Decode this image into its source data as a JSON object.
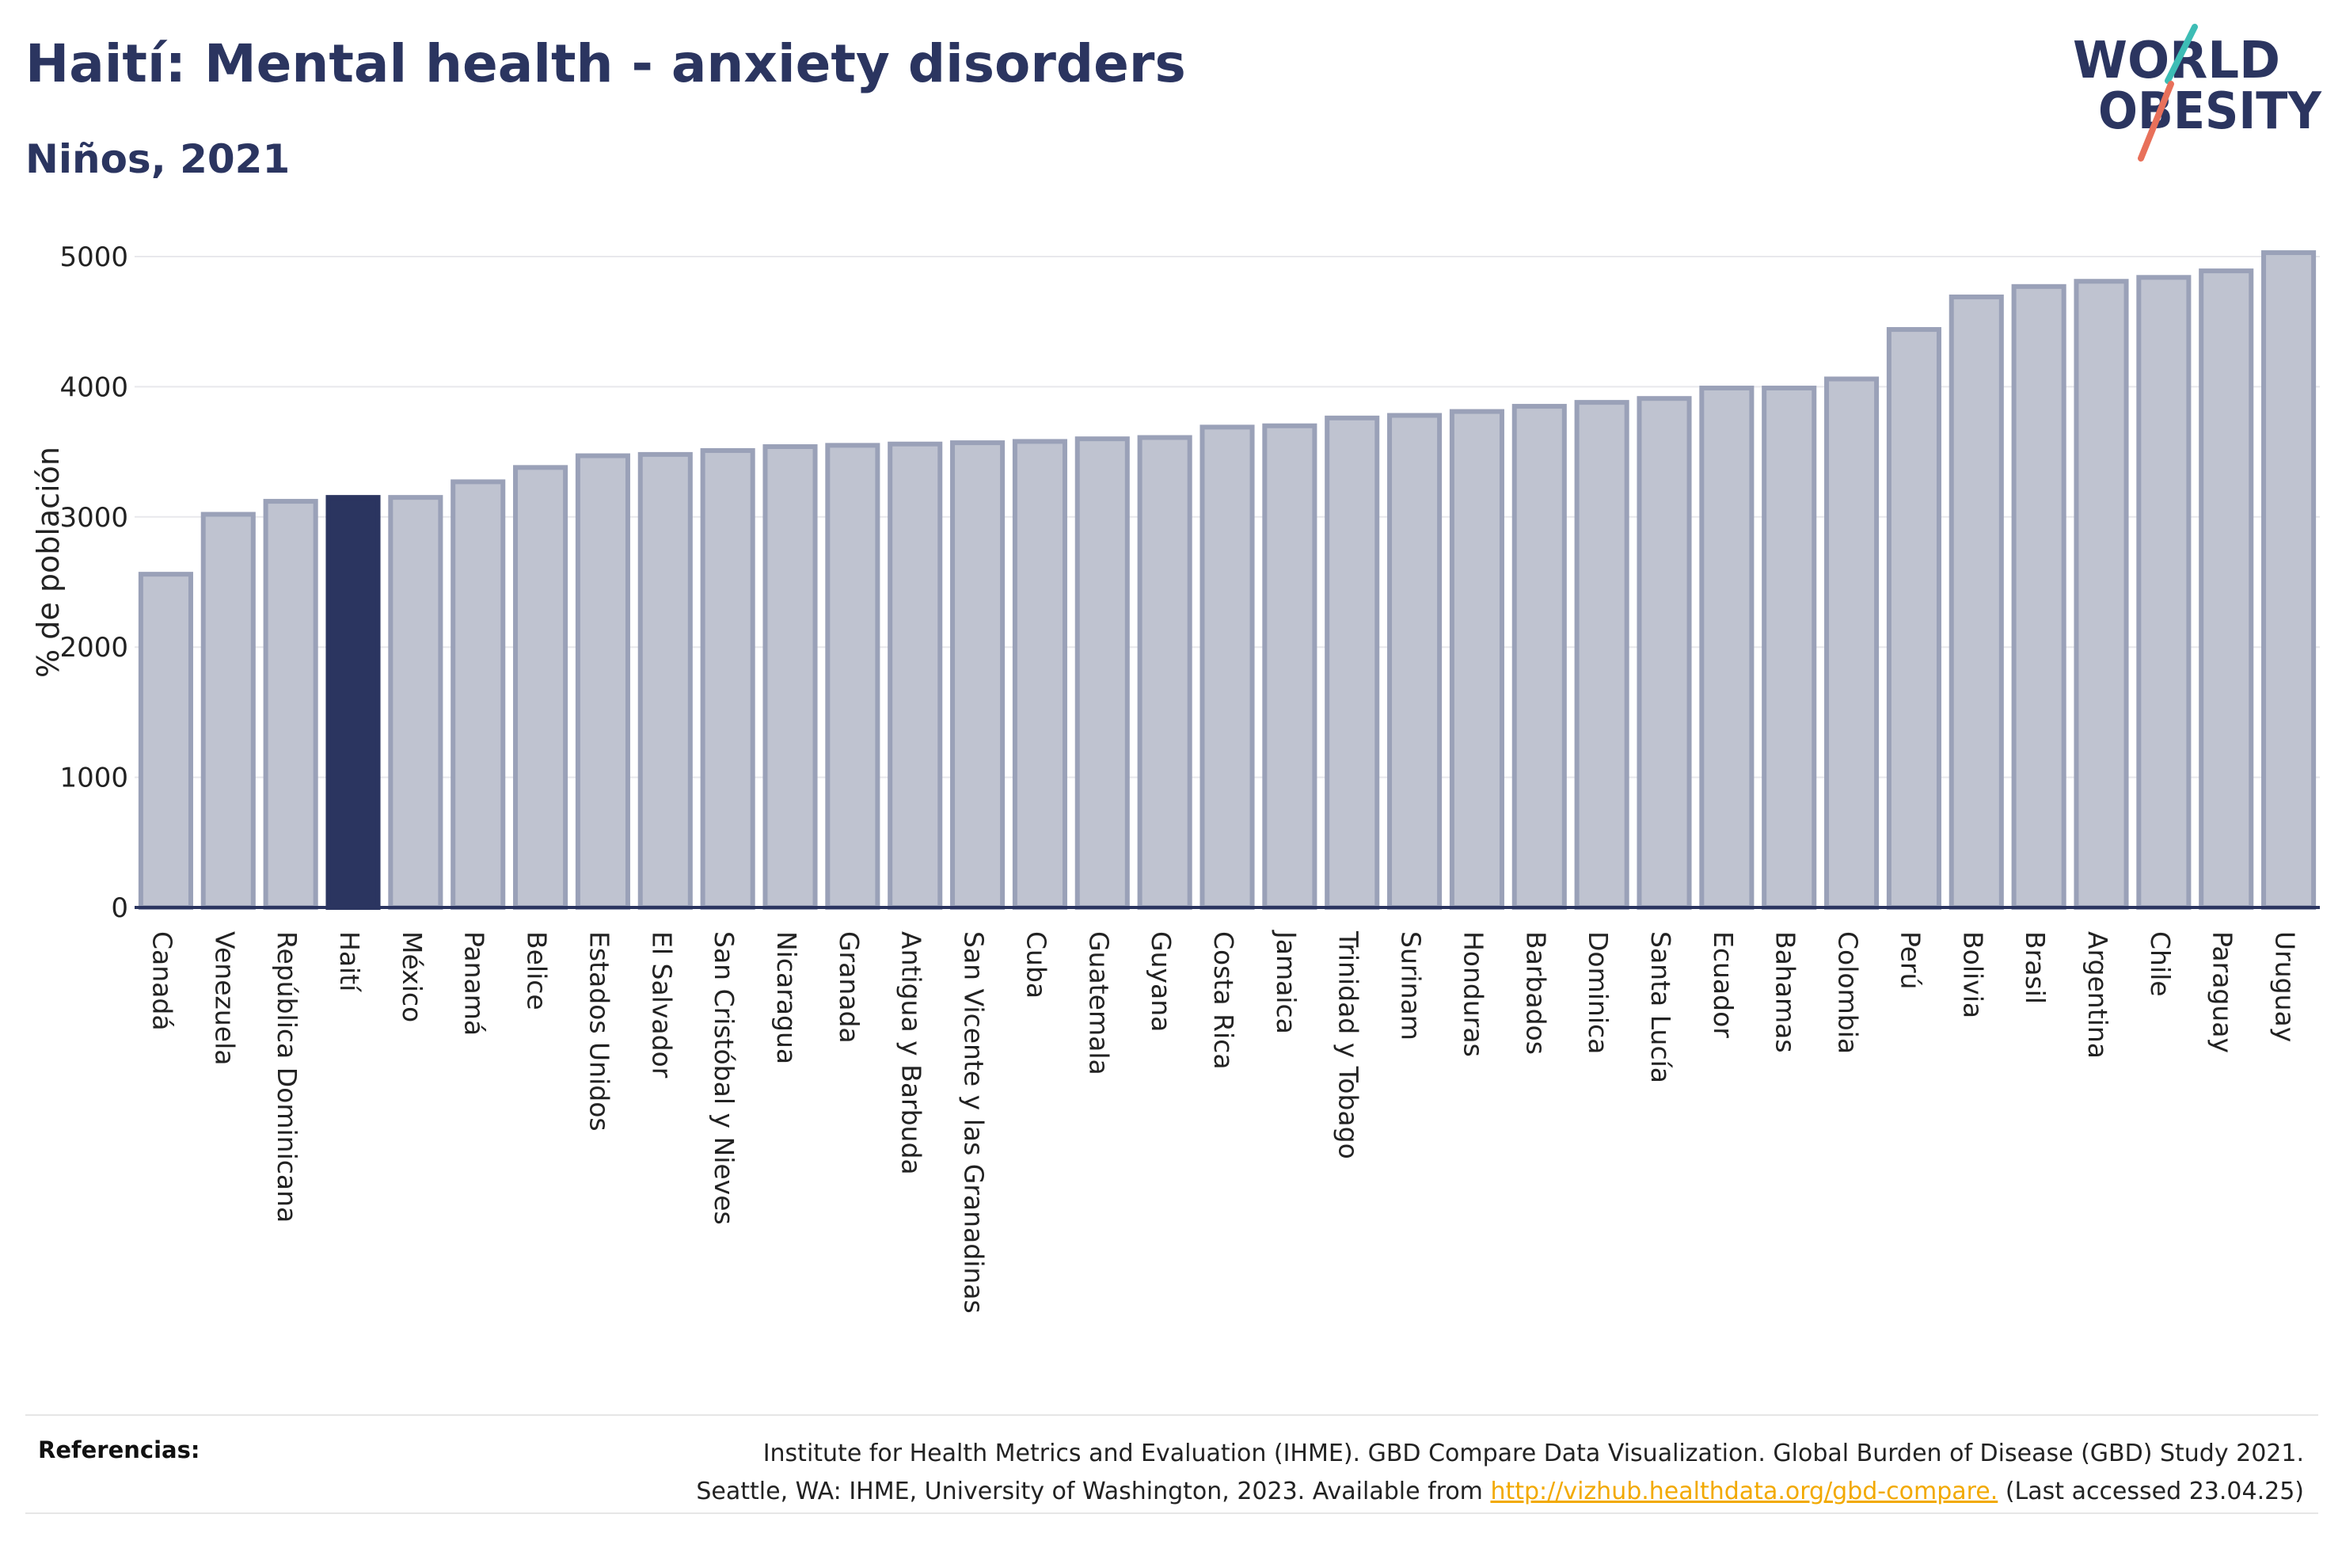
{
  "header": {
    "title": "Haití: Mental health - anxiety disorders",
    "subtitle": "Niños, 2021"
  },
  "logo": {
    "line1": "WORLD",
    "line2": "OBESITY",
    "slash_colors": [
      "#e8705a",
      "#3dbdb5"
    ]
  },
  "chart_data": {
    "type": "bar",
    "title": "",
    "xlabel": "",
    "ylabel": "% de población",
    "ylim": [
      0,
      5000
    ],
    "yticks": [
      0,
      1000,
      2000,
      3000,
      4000,
      5000
    ],
    "grid": true,
    "highlight": "Haití",
    "colors": {
      "bar": "#bfc3d0",
      "bar_edge": "#9aa1b8",
      "highlight": "#2b3560",
      "grid": "#e8e8ec",
      "axis": "#2b3560"
    },
    "categories": [
      "Canadá",
      "Venezuela",
      "República Dominicana",
      "Haití",
      "México",
      "Panamá",
      "Belice",
      "Estados Unidos",
      "El Salvador",
      "San Cristóbal y Nieves",
      "Nicaragua",
      "Granada",
      "Antigua y Barbuda",
      "San Vicente y las Granadinas",
      "Cuba",
      "Guatemala",
      "Guyana",
      "Costa Rica",
      "Jamaica",
      "Trinidad y Tobago",
      "Surinam",
      "Honduras",
      "Barbados",
      "Dominica",
      "Santa Lucía",
      "Ecuador",
      "Bahamas",
      "Colombia",
      "Perú",
      "Bolivia",
      "Brasil",
      "Argentina",
      "Chile",
      "Paraguay",
      "Uruguay"
    ],
    "values": [
      2560,
      3020,
      3120,
      3150,
      3150,
      3270,
      3380,
      3470,
      3480,
      3510,
      3540,
      3550,
      3560,
      3570,
      3580,
      3600,
      3610,
      3690,
      3700,
      3760,
      3780,
      3810,
      3850,
      3880,
      3910,
      3990,
      3990,
      4060,
      4440,
      4690,
      4770,
      4810,
      4840,
      4890,
      5030
    ]
  },
  "footer": {
    "references_label": "Referencias:",
    "citation_line1": "Institute for Health Metrics and Evaluation (IHME). GBD Compare Data Visualization. Global Burden of Disease (GBD) Study 2021.",
    "citation_line2_prefix": "Seattle, WA: IHME, University of Washington, 2023. Available from ",
    "citation_link": "http://vizhub.healthdata.org/gbd-compare.",
    "citation_line2_suffix": " (Last accessed 23.04.25)"
  }
}
